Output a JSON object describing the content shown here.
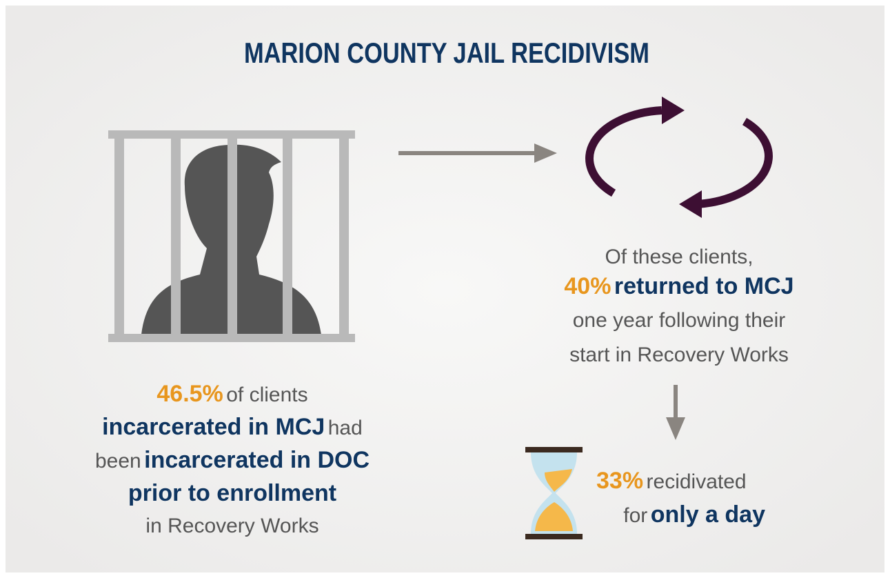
{
  "title": "MARION COUNTY JAIL RECIDIVISM",
  "left": {
    "stat": "46.5%",
    "line1_rest": "of clients",
    "line2_bold": "incarcerated in MCJ",
    "line2_rest": "had",
    "line3_start": "been",
    "line3_bold": "incarcerated in DOC",
    "line4_bold": "prior to enrollment",
    "line5": "in Recovery Works"
  },
  "right": {
    "line1": "Of these clients,",
    "stat": "40%",
    "line2_bold": "returned to MCJ",
    "line3": "one year following their",
    "line4": "start in Recovery Works"
  },
  "bottom": {
    "stat": "33%",
    "line1_rest": "recidivated",
    "line2_start": "for",
    "line2_bold": "only a day"
  }
}
